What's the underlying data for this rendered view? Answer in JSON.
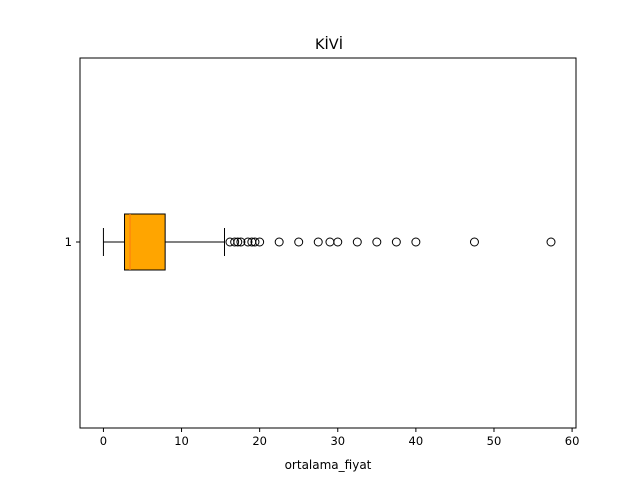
{
  "chart_data": {
    "type": "boxplot",
    "orientation": "horizontal",
    "title": "KİVİ",
    "xlabel": "ortalama_fiyat",
    "ylabel": "",
    "xlim": [
      -3,
      60.5
    ],
    "xticks": [
      0,
      10,
      20,
      30,
      40,
      50,
      60
    ],
    "categories": [
      "1"
    ],
    "box": {
      "whisker_low": 0,
      "q1": 2.7,
      "median": 3.4,
      "q3": 7.9,
      "whisker_high": 15.5
    },
    "outliers": [
      16.2,
      16.8,
      17.2,
      17.6,
      18.5,
      19.0,
      19.4,
      20.0,
      22.5,
      25.0,
      27.5,
      29.0,
      30.0,
      32.5,
      35.0,
      37.5,
      40.0,
      47.5,
      57.3
    ],
    "grid": false,
    "colors": {
      "box_fill": "#ffa500",
      "median": "#ff7f0e",
      "lines": "#000000"
    }
  }
}
